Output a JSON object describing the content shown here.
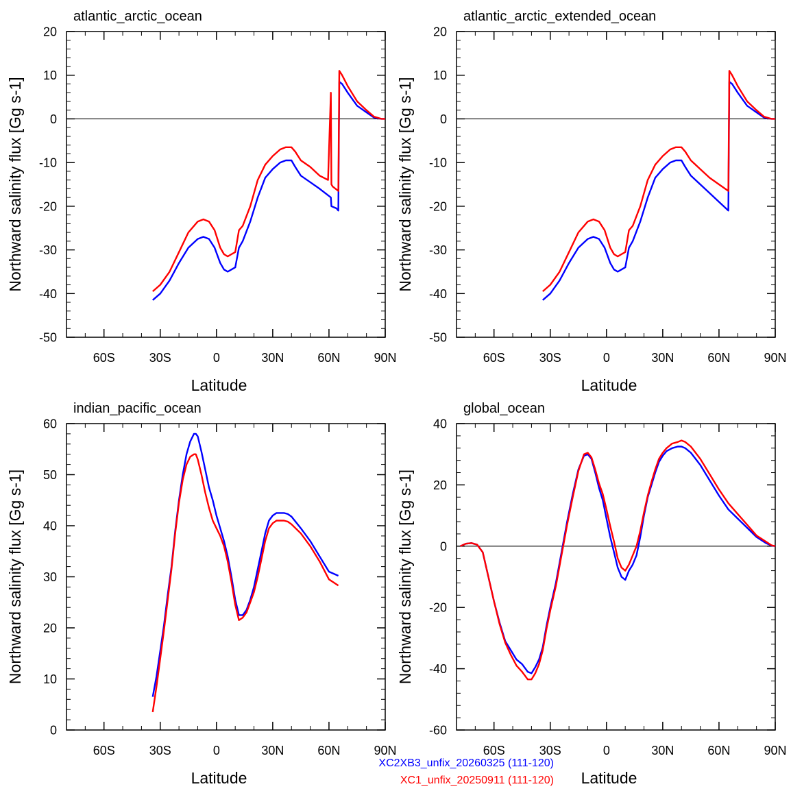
{
  "legend": [
    {
      "label": "XC2XB3_unfix_20260325 (111-120)",
      "color": "#0000ff"
    },
    {
      "label": "XC1_unfix_20250911 (111-120)",
      "color": "#ff0000"
    }
  ],
  "chart_data": [
    {
      "type": "line",
      "title": "atlantic_arctic_ocean",
      "xlabel": "Latitude",
      "ylabel": "Northward salinity flux [Gg s-1]",
      "xlim": [
        -80,
        90
      ],
      "ylim": [
        -50,
        20
      ],
      "xticks": [
        -60,
        -30,
        0,
        30,
        60,
        90
      ],
      "xticklabels": [
        "60S",
        "30S",
        "0",
        "30N",
        "60N",
        "90N"
      ],
      "yticks": [
        -50,
        -40,
        -30,
        -20,
        -10,
        0,
        10,
        20
      ],
      "yticklabels": [
        "-50",
        "-40",
        "-30",
        "-20",
        "-10",
        "0",
        "10",
        "20"
      ],
      "zero_line": true,
      "series": [
        {
          "name": "XC2XB3_unfix_20260325 (111-120)",
          "color": "#0000ff",
          "x": [
            -34,
            -30,
            -25,
            -20,
            -15,
            -10,
            -7,
            -4,
            -1,
            2,
            4,
            6,
            8,
            10,
            12,
            14,
            18,
            22,
            26,
            30,
            34,
            37,
            40,
            42,
            45,
            50,
            55,
            61,
            61.3,
            64,
            65,
            65.5,
            67,
            70,
            75,
            80,
            84,
            88,
            90
          ],
          "y": [
            -41.5,
            -40,
            -37,
            -33,
            -29.5,
            -27.5,
            -27,
            -27.5,
            -29.5,
            -33,
            -34.5,
            -35,
            -34.5,
            -34,
            -29.5,
            -28,
            -23.5,
            -18,
            -13.5,
            -11.5,
            -10,
            -9.5,
            -9.5,
            -11,
            -13,
            -14.5,
            -16,
            -18,
            -20,
            -20.5,
            -21,
            8.5,
            8,
            6,
            3,
            1.5,
            0.3,
            0,
            0
          ]
        },
        {
          "name": "XC1_unfix_20250911 (111-120)",
          "color": "#ff0000",
          "x": [
            -34,
            -30,
            -25,
            -20,
            -15,
            -10,
            -7,
            -4,
            -1,
            2,
            4,
            6,
            8,
            10,
            12,
            14,
            18,
            22,
            26,
            30,
            34,
            37,
            40,
            42,
            45,
            50,
            55,
            59.5,
            61,
            61.3,
            62,
            65,
            65.5,
            67,
            70,
            75,
            80,
            84,
            88,
            90
          ],
          "y": [
            -39.5,
            -38,
            -35,
            -30.5,
            -26,
            -23.5,
            -23,
            -23.5,
            -25.5,
            -29.5,
            -31,
            -31.5,
            -31,
            -30.5,
            -25.5,
            -24.5,
            -20,
            -14,
            -10.5,
            -8.5,
            -7,
            -6.5,
            -6.5,
            -7.5,
            -9.5,
            -11,
            -13,
            -14,
            6,
            -15,
            -15.5,
            -16.5,
            11,
            10,
            7.5,
            4,
            2,
            0.5,
            0,
            0
          ]
        }
      ]
    },
    {
      "type": "line",
      "title": "atlantic_arctic_extended_ocean",
      "xlabel": "Latitude",
      "ylabel": "Northward salinity flux [Gg s-1]",
      "xlim": [
        -80,
        90
      ],
      "ylim": [
        -50,
        20
      ],
      "xticks": [
        -60,
        -30,
        0,
        30,
        60,
        90
      ],
      "xticklabels": [
        "60S",
        "30S",
        "0",
        "30N",
        "60N",
        "90N"
      ],
      "yticks": [
        -50,
        -40,
        -30,
        -20,
        -10,
        0,
        10,
        20
      ],
      "yticklabels": [
        "-50",
        "-40",
        "-30",
        "-20",
        "-10",
        "0",
        "10",
        "20"
      ],
      "zero_line": true,
      "series": [
        {
          "name": "XC2XB3_unfix_20260325 (111-120)",
          "color": "#0000ff",
          "x": [
            -34,
            -30,
            -25,
            -20,
            -15,
            -10,
            -7,
            -4,
            -1,
            2,
            4,
            6,
            8,
            10,
            12,
            14,
            18,
            22,
            26,
            30,
            34,
            37,
            40,
            42,
            45,
            50,
            55,
            60,
            65,
            65.5,
            67,
            70,
            75,
            80,
            84,
            88,
            90
          ],
          "y": [
            -41.5,
            -40,
            -37,
            -33,
            -29.5,
            -27.5,
            -27,
            -27.5,
            -29.5,
            -33,
            -34.5,
            -35,
            -34.5,
            -34,
            -29.5,
            -28,
            -23.5,
            -18,
            -13.5,
            -11.5,
            -10,
            -9.5,
            -9.5,
            -11,
            -13,
            -15,
            -17,
            -19,
            -21,
            8.5,
            8,
            6,
            3,
            1.5,
            0.3,
            0,
            0
          ]
        },
        {
          "name": "XC1_unfix_20250911 (111-120)",
          "color": "#ff0000",
          "x": [
            -34,
            -30,
            -25,
            -20,
            -15,
            -10,
            -7,
            -4,
            -1,
            2,
            4,
            6,
            8,
            10,
            12,
            14,
            18,
            22,
            26,
            30,
            34,
            37,
            40,
            42,
            45,
            50,
            55,
            60,
            65,
            65.5,
            67,
            70,
            75,
            80,
            84,
            88,
            90
          ],
          "y": [
            -39.5,
            -38,
            -35,
            -30.5,
            -26,
            -23.5,
            -23,
            -23.5,
            -25.5,
            -29.5,
            -31,
            -31.5,
            -31,
            -30.5,
            -25.5,
            -24.5,
            -20,
            -14,
            -10.5,
            -8.5,
            -7,
            -6.5,
            -6.5,
            -7.5,
            -9.5,
            -11.5,
            -13.5,
            -15,
            -16.5,
            11,
            10,
            7.5,
            4,
            2,
            0.5,
            0,
            0
          ]
        }
      ]
    },
    {
      "type": "line",
      "title": "indian_pacific_ocean",
      "xlabel": "Latitude",
      "ylabel": "Northward salinity flux [Gg s-1]",
      "xlim": [
        -80,
        90
      ],
      "ylim": [
        0,
        60
      ],
      "xticks": [
        -60,
        -30,
        0,
        30,
        60,
        90
      ],
      "xticklabels": [
        "60S",
        "30S",
        "0",
        "30N",
        "60N",
        "90N"
      ],
      "yticks": [
        0,
        10,
        20,
        30,
        40,
        50,
        60
      ],
      "yticklabels": [
        "0",
        "10",
        "20",
        "30",
        "40",
        "50",
        "60"
      ],
      "zero_line": false,
      "series": [
        {
          "name": "XC2XB3_unfix_20260325 (111-120)",
          "color": "#0000ff",
          "x": [
            -34,
            -32,
            -30,
            -28,
            -26,
            -24,
            -22,
            -20,
            -18,
            -16,
            -14,
            -12,
            -11,
            -10,
            -8,
            -6,
            -4,
            -2,
            0,
            2,
            4,
            6,
            8,
            10,
            12,
            14,
            16,
            18,
            20,
            22,
            24,
            26,
            28,
            30,
            32,
            34,
            36,
            38,
            40,
            45,
            50,
            55,
            60,
            65
          ],
          "y": [
            6.5,
            10.5,
            15.5,
            20.5,
            26.5,
            32,
            39,
            45,
            50,
            54,
            56.5,
            58,
            58,
            57.5,
            54.5,
            51,
            47.5,
            45,
            42,
            39.5,
            37,
            34,
            30,
            25.5,
            22.5,
            22.5,
            23.5,
            25.5,
            28,
            31.5,
            35,
            38.5,
            41,
            42,
            42.5,
            42.5,
            42.5,
            42.3,
            41.8,
            39.5,
            37,
            34,
            31,
            30.2
          ]
        },
        {
          "name": "XC1_unfix_20250911 (111-120)",
          "color": "#ff0000",
          "x": [
            -34,
            -32,
            -30,
            -28,
            -26,
            -24,
            -22,
            -20,
            -18,
            -16,
            -14,
            -12,
            -11,
            -10,
            -8,
            -6,
            -4,
            -2,
            0,
            2,
            4,
            6,
            8,
            10,
            12,
            14,
            16,
            18,
            20,
            22,
            24,
            26,
            28,
            30,
            32,
            34,
            36,
            38,
            40,
            45,
            50,
            55,
            60,
            65
          ],
          "y": [
            3.5,
            8.5,
            14,
            19.5,
            25.5,
            31.5,
            38.5,
            44.5,
            49,
            52,
            53.5,
            54,
            54,
            53,
            50,
            46.5,
            43.5,
            41,
            39.5,
            38,
            36,
            33,
            29,
            24.5,
            21.5,
            22,
            23,
            25,
            27,
            30,
            33.5,
            37,
            39.5,
            40.5,
            41,
            41,
            41,
            40.8,
            40.3,
            38.5,
            36,
            33,
            29.5,
            28.3
          ]
        }
      ]
    },
    {
      "type": "line",
      "title": "global_ocean",
      "xlabel": "Latitude",
      "ylabel": "Northward salinity flux [Gg s-1]",
      "xlim": [
        -80,
        90
      ],
      "ylim": [
        -60,
        40
      ],
      "xticks": [
        -60,
        -30,
        0,
        30,
        60,
        90
      ],
      "xticklabels": [
        "60S",
        "30S",
        "0",
        "30N",
        "60N",
        "90N"
      ],
      "yticks": [
        -60,
        -40,
        -20,
        0,
        20,
        40
      ],
      "yticklabels": [
        "-60",
        "-40",
        "-20",
        "0",
        "20",
        "40"
      ],
      "zero_line": true,
      "series": [
        {
          "name": "XC2XB3_unfix_20260325 (111-120)",
          "color": "#0000ff",
          "x": [
            -78,
            -75,
            -72,
            -69,
            -66,
            -63,
            -60,
            -57,
            -54,
            -51,
            -48,
            -45,
            -42,
            -40,
            -38,
            -36,
            -34,
            -32,
            -30,
            -27,
            -24,
            -21,
            -18,
            -15,
            -12,
            -10,
            -8,
            -6,
            -4,
            -2,
            0,
            2,
            4,
            6,
            8,
            10,
            12,
            14,
            16,
            18,
            20,
            22,
            24,
            26,
            28,
            30,
            32,
            35,
            38,
            40,
            42,
            45,
            50,
            55,
            60,
            65,
            70,
            75,
            80,
            85,
            88,
            90
          ],
          "y": [
            0,
            0.8,
            1,
            0.5,
            -2,
            -10,
            -18,
            -25,
            -31,
            -34,
            -37,
            -38.5,
            -41,
            -41.5,
            -39.5,
            -37,
            -33,
            -26,
            -20,
            -12,
            -2,
            8,
            17,
            25,
            29.5,
            30,
            28.5,
            24,
            19,
            15,
            9,
            3,
            -2,
            -7,
            -10,
            -11,
            -8,
            -6,
            -3,
            3,
            10,
            16,
            20,
            24,
            27.5,
            29.5,
            31,
            32,
            32.5,
            32.5,
            32,
            30.5,
            26.5,
            21.5,
            16.5,
            12,
            9,
            6,
            3,
            1,
            0.2,
            0
          ]
        },
        {
          "name": "XC1_unfix_20250911 (111-120)",
          "color": "#ff0000",
          "x": [
            -78,
            -75,
            -72,
            -69,
            -66,
            -63,
            -60,
            -57,
            -54,
            -51,
            -48,
            -45,
            -42,
            -40,
            -38,
            -36,
            -34,
            -32,
            -30,
            -27,
            -24,
            -21,
            -18,
            -15,
            -12,
            -10,
            -8,
            -6,
            -4,
            -2,
            0,
            2,
            4,
            6,
            8,
            10,
            12,
            14,
            16,
            18,
            20,
            22,
            24,
            26,
            28,
            30,
            32,
            35,
            38,
            40,
            42,
            45,
            50,
            55,
            60,
            65,
            70,
            75,
            80,
            85,
            88,
            90
          ],
          "y": [
            0,
            0.8,
            1,
            0.5,
            -2,
            -10,
            -18,
            -25.5,
            -31.5,
            -35.5,
            -39,
            -41,
            -43.5,
            -43.5,
            -41.5,
            -38.5,
            -34,
            -27,
            -21,
            -13,
            -3,
            7,
            16,
            24.5,
            30,
            30.5,
            29,
            25,
            20.5,
            17,
            12,
            6.5,
            1.5,
            -4,
            -7,
            -8,
            -6,
            -3,
            0,
            5,
            11,
            16.5,
            21,
            25,
            28.5,
            30.5,
            32,
            33.5,
            34,
            34.5,
            34,
            32.5,
            28.5,
            23.5,
            18.5,
            14,
            10.5,
            7,
            3.5,
            1.5,
            0.3,
            0
          ]
        }
      ]
    }
  ]
}
